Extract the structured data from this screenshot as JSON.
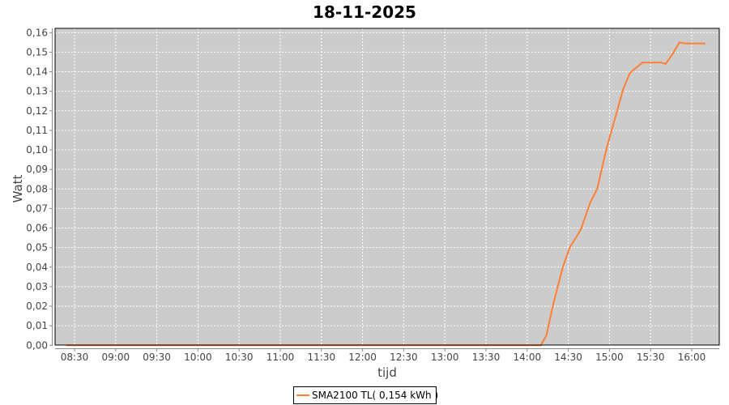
{
  "chart_data": {
    "type": "line",
    "title": "18-11-2025",
    "xlabel": "tijd",
    "ylabel": "Watt",
    "ylim": [
      0,
      0.16
    ],
    "xlim": [
      "08:15",
      "16:20"
    ],
    "grid": true,
    "legend_position": "bottom",
    "x_ticks": [
      "08:30",
      "09:00",
      "09:30",
      "10:00",
      "10:30",
      "11:00",
      "11:30",
      "12:00",
      "12:30",
      "13:00",
      "13:30",
      "14:00",
      "14:30",
      "15:00",
      "15:30",
      "16:00"
    ],
    "y_ticks": [
      "0,00",
      "0,01",
      "0,02",
      "0,03",
      "0,04",
      "0,05",
      "0,06",
      "0,07",
      "0,08",
      "0,09",
      "0,10",
      "0,11",
      "0,12",
      "0,13",
      "0,14",
      "0,15",
      "0,16"
    ],
    "colors": {
      "plot_background": "#cccccc",
      "grid": "#ffffff",
      "series": "#ff7f33"
    },
    "series": [
      {
        "name": "SMA2100 TL( 0,154 kWh )",
        "x": [
          "08:24",
          "14:10",
          "14:14",
          "14:19",
          "14:26",
          "14:31",
          "14:39",
          "14:46",
          "14:51",
          "14:58",
          "15:04",
          "15:10",
          "15:15",
          "15:24",
          "15:38",
          "15:41",
          "15:46",
          "15:51",
          "15:55",
          "16:10"
        ],
        "y": [
          0,
          0,
          0.005,
          0.021,
          0.04,
          0.05,
          0.059,
          0.073,
          0.08,
          0.101,
          0.116,
          0.131,
          0.1395,
          0.1447,
          0.1447,
          0.144,
          0.149,
          0.155,
          0.1545,
          0.1545
        ]
      }
    ]
  }
}
